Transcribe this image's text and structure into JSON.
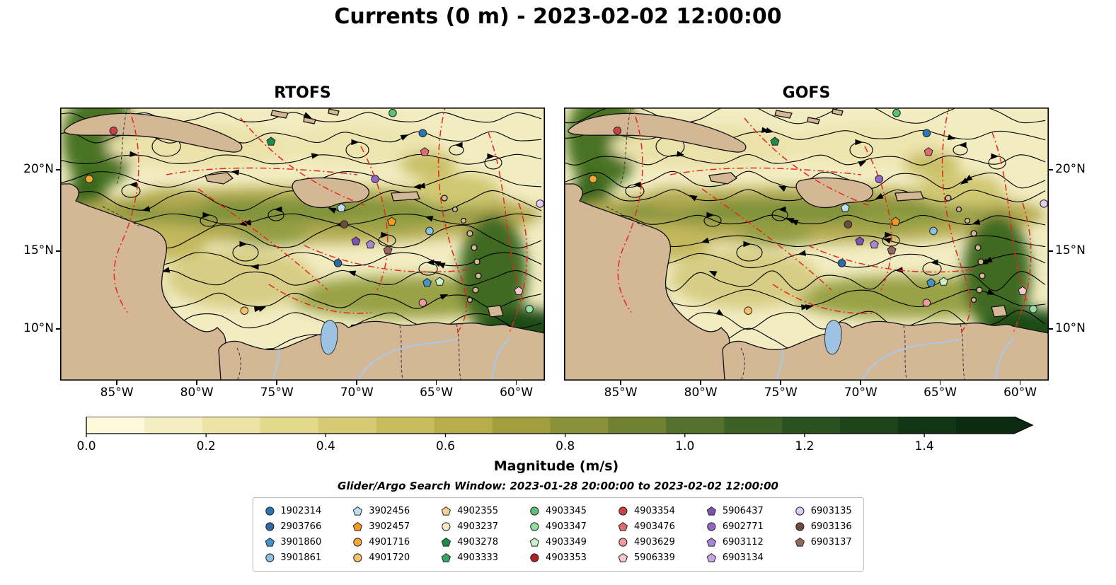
{
  "title": "Currents (0 m) - 2023-02-02 12:00:00",
  "panels": [
    {
      "label": "RTOFS"
    },
    {
      "label": "GOFS"
    }
  ],
  "axes": {
    "lat_ticks": [
      {
        "label": "20°N",
        "f": 0.228
      },
      {
        "label": "15°N",
        "f": 0.526
      },
      {
        "label": "10°N",
        "f": 0.811
      }
    ],
    "lon_ticks": [
      {
        "label": "85°W",
        "f": 0.117
      },
      {
        "label": "80°W",
        "f": 0.282
      },
      {
        "label": "75°W",
        "f": 0.447
      },
      {
        "label": "70°W",
        "f": 0.612
      },
      {
        "label": "65°W",
        "f": 0.776
      },
      {
        "label": "60°W",
        "f": 0.941
      }
    ]
  },
  "colorbar": {
    "label": "Magnitude (m/s)",
    "ticks": [
      "0.0",
      "0.2",
      "0.4",
      "0.6",
      "0.8",
      "1.0",
      "1.2",
      "1.4"
    ],
    "vmax_arrow": 1.55,
    "stops": [
      "#fdf8da",
      "#f5eec2",
      "#ece3a6",
      "#e2d88c",
      "#d6cb74",
      "#c8bd5e",
      "#b7ae4b",
      "#a29f3e",
      "#8a9038",
      "#6f8031",
      "#54702b",
      "#3c6024",
      "#2a511f",
      "#1c431a",
      "#123615",
      "#0b2a10"
    ]
  },
  "search_window": "Glider/Argo Search Window: 2023-01-28 20:00:00 to 2023-02-02 12:00:00",
  "legend": {
    "columns": [
      [
        {
          "id": "1902314",
          "shape": "circle",
          "color": "#2878b8"
        },
        {
          "id": "2903766",
          "shape": "circle",
          "color": "#2e6ba6"
        },
        {
          "id": "3901860",
          "shape": "pentagon",
          "color": "#4293c9"
        },
        {
          "id": "3901861",
          "shape": "circle",
          "color": "#8cc1e4"
        }
      ],
      [
        {
          "id": "3902456",
          "shape": "pentagon",
          "color": "#bcdff2"
        },
        {
          "id": "3902457",
          "shape": "pentagon",
          "color": "#f59a21"
        },
        {
          "id": "4901716",
          "shape": "circle",
          "color": "#f7a834"
        },
        {
          "id": "4901720",
          "shape": "circle",
          "color": "#fbc06a"
        }
      ],
      [
        {
          "id": "4902355",
          "shape": "pentagon",
          "color": "#f8d094"
        },
        {
          "id": "4903237",
          "shape": "circle",
          "color": "#fdeac8"
        },
        {
          "id": "4903278",
          "shape": "pentagon",
          "color": "#1f8a4c"
        },
        {
          "id": "4903333",
          "shape": "pentagon",
          "color": "#37a95e"
        }
      ],
      [
        {
          "id": "4903345",
          "shape": "circle",
          "color": "#5ac179"
        },
        {
          "id": "4903347",
          "shape": "circle",
          "color": "#93dda2"
        },
        {
          "id": "4903349",
          "shape": "pentagon",
          "color": "#caf1ca"
        },
        {
          "id": "4903353",
          "shape": "circle",
          "color": "#b41d21"
        }
      ],
      [
        {
          "id": "4903354",
          "shape": "circle",
          "color": "#ca4147"
        },
        {
          "id": "4903476",
          "shape": "pentagon",
          "color": "#e16b71"
        },
        {
          "id": "4903629",
          "shape": "circle",
          "color": "#f198a1"
        },
        {
          "id": "5906339",
          "shape": "pentagon",
          "color": "#f9c7cf"
        }
      ],
      [
        {
          "id": "5906437",
          "shape": "pentagon",
          "color": "#7c52b4"
        },
        {
          "id": "6902771",
          "shape": "circle",
          "color": "#9267c7"
        },
        {
          "id": "6903112",
          "shape": "pentagon",
          "color": "#aa84d7"
        },
        {
          "id": "6903134",
          "shape": "pentagon",
          "color": "#c5a7e7"
        }
      ],
      [
        {
          "id": "6903135",
          "shape": "circle",
          "color": "#dfccf2"
        },
        {
          "id": "6903136",
          "shape": "circle",
          "color": "#6f4b3d"
        },
        {
          "id": "6903137",
          "shape": "pentagon",
          "color": "#95695b"
        }
      ]
    ]
  },
  "map_markers": [
    {
      "id": "4903354",
      "fx": 0.11,
      "fy": 0.085
    },
    {
      "id": "4903278",
      "fx": 0.435,
      "fy": 0.125
    },
    {
      "id": "4903345",
      "fx": 0.686,
      "fy": 0.02
    },
    {
      "id": "1902314",
      "fx": 0.748,
      "fy": 0.094
    },
    {
      "id": "4903476",
      "fx": 0.752,
      "fy": 0.163
    },
    {
      "id": "4901716",
      "fx": 0.06,
      "fy": 0.262
    },
    {
      "id": "6902771",
      "fx": 0.65,
      "fy": 0.262
    },
    {
      "id": "6903135",
      "fx": 0.99,
      "fy": 0.352
    },
    {
      "id": "3902456",
      "fx": 0.58,
      "fy": 0.368
    },
    {
      "id": "3902457",
      "fx": 0.684,
      "fy": 0.418
    },
    {
      "id": "6903136",
      "fx": 0.586,
      "fy": 0.428
    },
    {
      "id": "3901861",
      "fx": 0.762,
      "fy": 0.452
    },
    {
      "id": "5906437",
      "fx": 0.61,
      "fy": 0.49
    },
    {
      "id": "6903112",
      "fx": 0.64,
      "fy": 0.502
    },
    {
      "id": "6903137",
      "fx": 0.676,
      "fy": 0.523
    },
    {
      "id": "2903766",
      "fx": 0.573,
      "fy": 0.57
    },
    {
      "id": "3901860",
      "fx": 0.757,
      "fy": 0.642
    },
    {
      "id": "4903349",
      "fx": 0.783,
      "fy": 0.638
    },
    {
      "id": "4903629",
      "fx": 0.748,
      "fy": 0.715
    },
    {
      "id": "5906339",
      "fx": 0.946,
      "fy": 0.672
    },
    {
      "id": "4903347",
      "fx": 0.968,
      "fy": 0.738
    },
    {
      "id": "4901720",
      "fx": 0.38,
      "fy": 0.744
    }
  ]
}
